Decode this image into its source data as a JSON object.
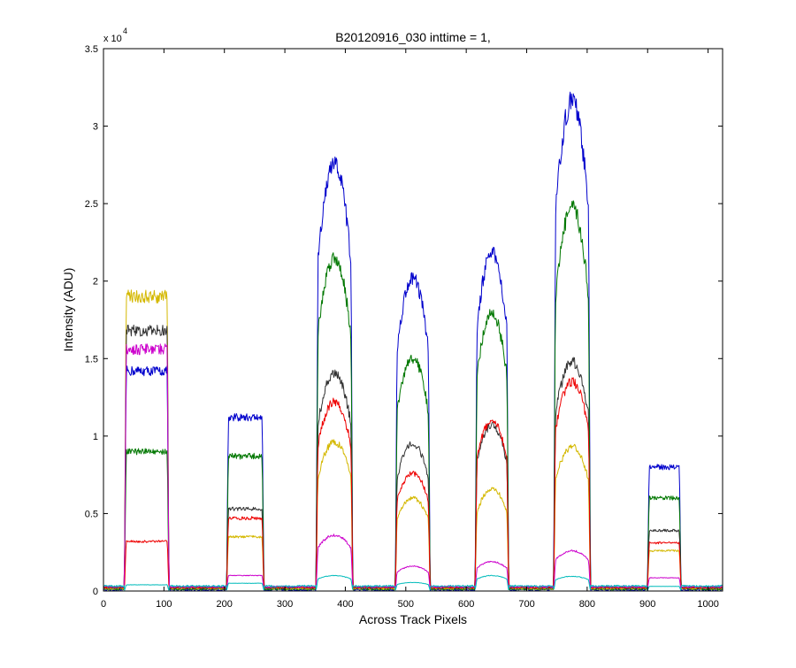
{
  "chart_data": {
    "type": "line",
    "title": "B20120916_030 inttime = 1,",
    "xlabel": "Across Track Pixels",
    "ylabel": "Intensity (ADU)",
    "y_exponent_label": "x 10",
    "y_exponent_power": "4",
    "xlim": [
      0,
      1024
    ],
    "ylim": [
      0,
      35000
    ],
    "grid": false,
    "legend": "none",
    "x_ticks": [
      0,
      100,
      200,
      300,
      400,
      500,
      600,
      700,
      800,
      900,
      1000
    ],
    "x_tick_labels": [
      "0",
      "100",
      "200",
      "300",
      "400",
      "500",
      "600",
      "700",
      "800",
      "900",
      "1000"
    ],
    "y_ticks": [
      0,
      5000,
      10000,
      15000,
      20000,
      25000,
      30000,
      35000
    ],
    "y_tick_labels": [
      "0",
      "0.5",
      "1",
      "1.5",
      "2",
      "2.5",
      "3",
      "3.5"
    ],
    "segments": [
      {
        "x_start": 35,
        "x_end": 108,
        "shape": "flat"
      },
      {
        "x_start": 204,
        "x_end": 265,
        "shape": "flat"
      },
      {
        "x_start": 352,
        "x_end": 412,
        "shape": "peak"
      },
      {
        "x_start": 483,
        "x_end": 540,
        "shape": "peak"
      },
      {
        "x_start": 615,
        "x_end": 670,
        "shape": "peak"
      },
      {
        "x_start": 745,
        "x_end": 805,
        "shape": "peak"
      },
      {
        "x_start": 900,
        "x_end": 955,
        "shape": "flat"
      }
    ],
    "series": [
      {
        "color": "#0000cc",
        "plateaus": [
          14200,
          11200,
          27500,
          20200,
          21800,
          31600,
          8000
        ]
      },
      {
        "color": "#007700",
        "plateaus": [
          9000,
          8700,
          21500,
          15000,
          17900,
          24700,
          6000
        ]
      },
      {
        "color": "#d4b800",
        "plateaus": [
          19000,
          3500,
          9600,
          6000,
          6600,
          9300,
          2600
        ]
      },
      {
        "color": "#333333",
        "plateaus": [
          16800,
          5300,
          14000,
          9500,
          10700,
          14800,
          3900
        ]
      },
      {
        "color": "#ee0000",
        "plateaus": [
          3200,
          4700,
          12200,
          7600,
          11000,
          13500,
          3100
        ]
      },
      {
        "color": "#cc00cc",
        "plateaus": [
          15600,
          1000,
          3600,
          1600,
          1900,
          2600,
          850
        ]
      },
      {
        "color": "#00bbbb",
        "plateaus": [
          400,
          500,
          1000,
          550,
          1000,
          950,
          300
        ]
      }
    ]
  }
}
